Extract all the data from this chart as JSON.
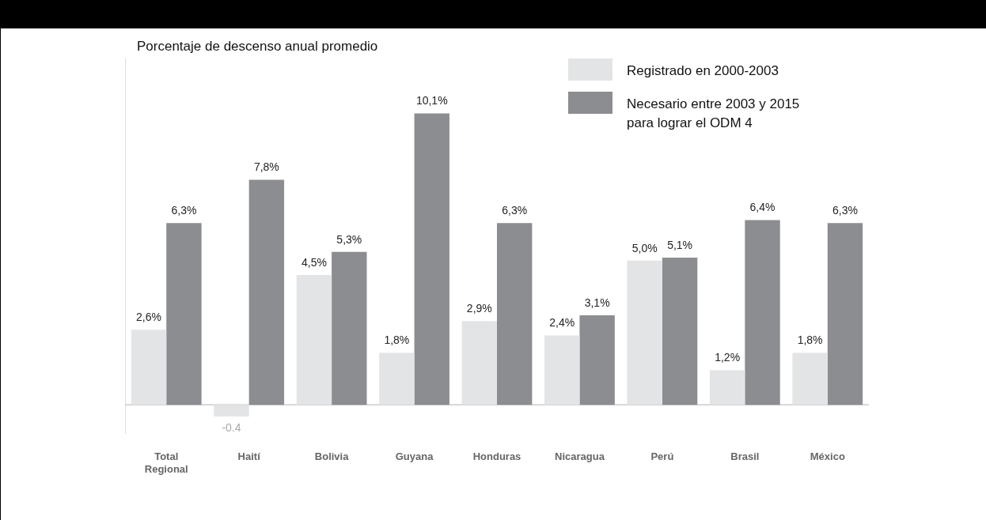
{
  "chart_data": {
    "type": "bar",
    "ylabel": "Porcentaje de descenso anual promedio",
    "categories": [
      "Total Regional",
      "Haití",
      "Bolivia",
      "Guyana",
      "Honduras",
      "Nicaragua",
      "Perú",
      "Brasil",
      "México"
    ],
    "series": [
      {
        "name": "Registrado en 2000-2003",
        "color": "#e3e4e5",
        "values": [
          2.6,
          -0.4,
          4.5,
          1.8,
          2.9,
          2.4,
          5.0,
          1.2,
          1.8
        ],
        "value_labels": [
          "2,6%",
          "-0.4",
          "4,5%",
          "1,8%",
          "2,9%",
          "2,4%",
          "5,0%",
          "1,2%",
          "1,8%"
        ]
      },
      {
        "name": "Necesario entre 2003 y 2015 para lograr el ODM 4",
        "color": "#8c8d90",
        "values": [
          6.3,
          7.8,
          5.3,
          10.1,
          6.3,
          3.1,
          5.1,
          6.4,
          6.3
        ],
        "value_labels": [
          "6,3%",
          "7,8%",
          "5,3%",
          "10,1%",
          "6,3%",
          "3,1%",
          "5,1%",
          "6,4%",
          "6,3%"
        ]
      }
    ],
    "ylim": [
      -1,
      12
    ],
    "tick_labels": "x",
    "grid": false,
    "legend": "top right",
    "ref_lines": [
      {
        "axis": "y",
        "value": 0,
        "color": "#cccccc"
      }
    ]
  }
}
